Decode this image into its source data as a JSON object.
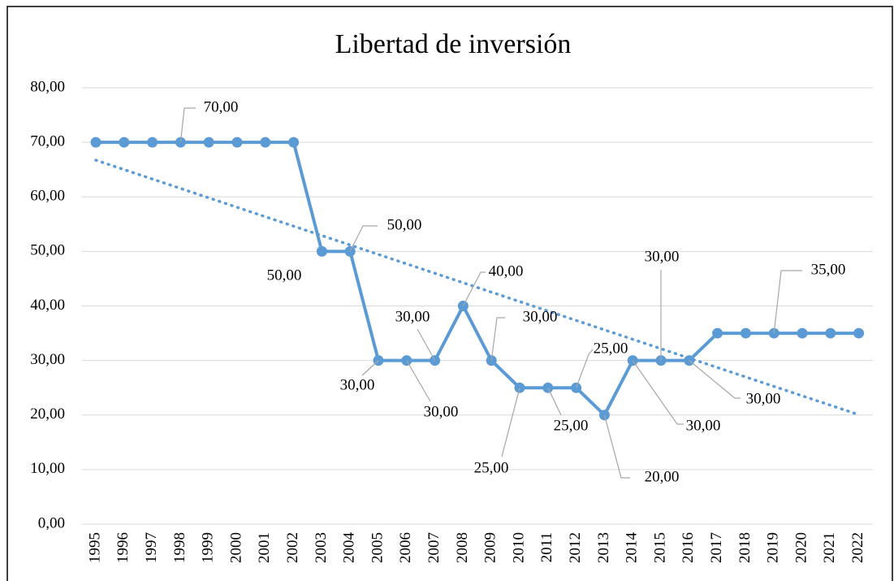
{
  "chart_data": {
    "type": "line",
    "title": "Libertad de inversión",
    "categories": [
      "1995",
      "1996",
      "1997",
      "1998",
      "1999",
      "2000",
      "2001",
      "2002",
      "2003",
      "2004",
      "2005",
      "2006",
      "2007",
      "2008",
      "2009",
      "2010",
      "2011",
      "2012",
      "2013",
      "2014",
      "2015",
      "2016",
      "2017",
      "2018",
      "2019",
      "2020",
      "2021",
      "2022"
    ],
    "values": [
      70,
      70,
      70,
      70,
      70,
      70,
      70,
      70,
      50,
      50,
      30,
      30,
      30,
      40,
      30,
      25,
      25,
      25,
      20,
      30,
      30,
      30,
      35,
      35,
      35,
      35,
      35,
      35
    ],
    "value_labels": [
      null,
      null,
      null,
      "70,00",
      null,
      null,
      null,
      null,
      "50,00",
      "50,00",
      "30,00",
      "30,00",
      "30,00",
      "40,00",
      "30,00",
      "25,00",
      "25,00",
      "25,00",
      "20,00",
      "30,00",
      "30,00",
      "30,00",
      null,
      null,
      "35,00",
      null,
      null,
      null
    ],
    "color": "#5b9bd5",
    "trendline": "linear",
    "ylim": [
      0,
      80
    ],
    "yticks": [
      {
        "value": 0,
        "label": "0,00"
      },
      {
        "value": 10,
        "label": "10,00"
      },
      {
        "value": 20,
        "label": "20,00"
      },
      {
        "value": 30,
        "label": "30,00"
      },
      {
        "value": 40,
        "label": "40,00"
      },
      {
        "value": 50,
        "label": "50,00"
      },
      {
        "value": 60,
        "label": "60,00"
      },
      {
        "value": 70,
        "label": "70,00"
      },
      {
        "value": 80,
        "label": "80,00"
      }
    ],
    "grid": true
  }
}
